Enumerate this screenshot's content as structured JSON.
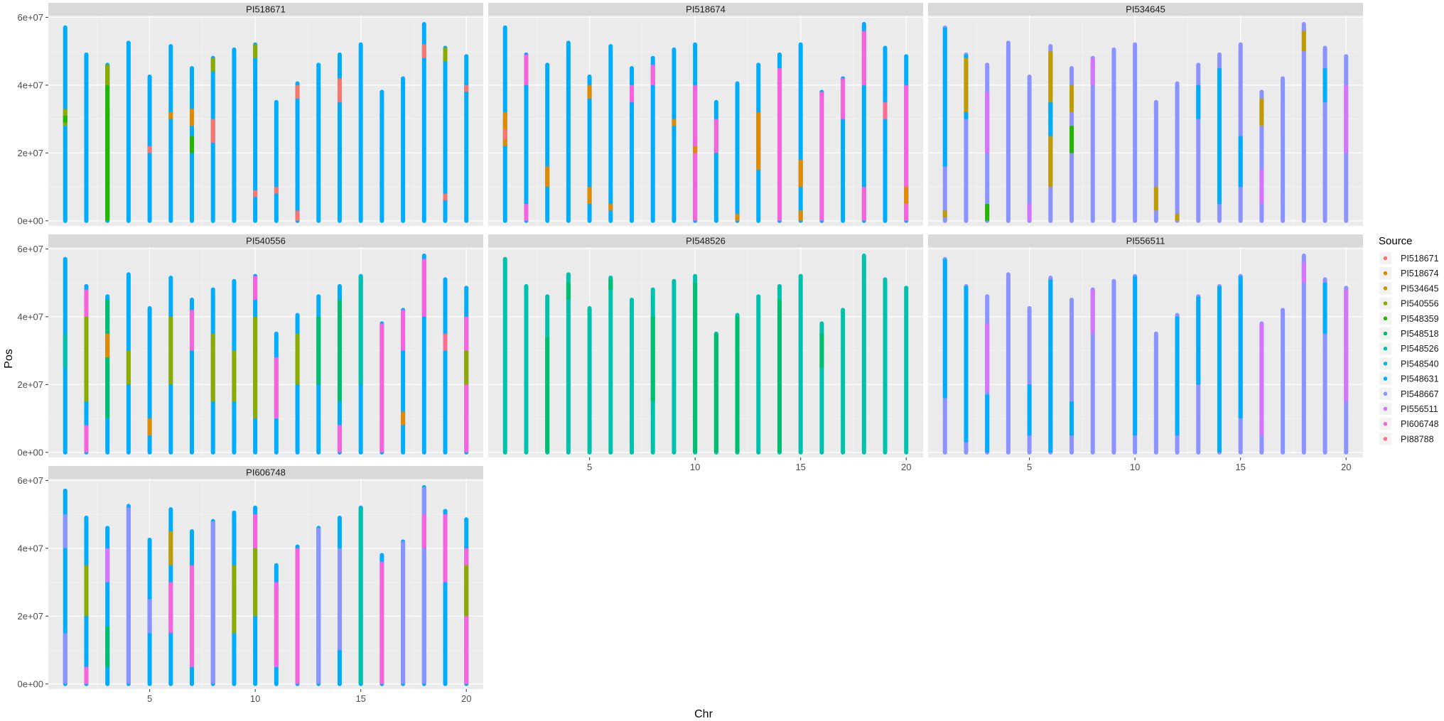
{
  "chart_data": {
    "type": "scatter",
    "facet_by": "Source panel",
    "xlabel": "Chr",
    "ylabel": "Pos",
    "xlim": [
      0.2,
      20.8
    ],
    "ylim": [
      -1500000,
      60500000
    ],
    "x_ticks": [
      5,
      10,
      15,
      20
    ],
    "x_tick_labels": [
      "5",
      "10",
      "15",
      "20"
    ],
    "y_ticks": [
      0,
      20000000,
      40000000,
      60000000
    ],
    "y_tick_labels": [
      "0e+00",
      "2e+07",
      "4e+07",
      "6e+07"
    ],
    "grid": true,
    "legend": {
      "title": "Source",
      "position": "right",
      "entries": [
        {
          "label": "PI518671",
          "color": "#F8766D"
        },
        {
          "label": "PI518674",
          "color": "#E18A00"
        },
        {
          "label": "PI534645",
          "color": "#BE9C00"
        },
        {
          "label": "PI540556",
          "color": "#8CAB00"
        },
        {
          "label": "PI548359",
          "color": "#24B700"
        },
        {
          "label": "PI548518",
          "color": "#00BE70"
        },
        {
          "label": "PI548526",
          "color": "#00C1AB"
        },
        {
          "label": "PI548540",
          "color": "#00BBDA"
        },
        {
          "label": "PI548631",
          "color": "#00ACFC"
        },
        {
          "label": "PI548667",
          "color": "#8B93FF"
        },
        {
          "label": "PI556511",
          "color": "#D575FE"
        },
        {
          "label": "PI606748",
          "color": "#F962DD"
        },
        {
          "label": "PI88788",
          "color": "#FF6C91"
        }
      ]
    },
    "chromosome_lengths": [
      57,
      49,
      46,
      52.5,
      42.5,
      51.5,
      45,
      48,
      50.5,
      52,
      35,
      40.5,
      46,
      49,
      52,
      38,
      42,
      58,
      51,
      48.5
    ],
    "panels": [
      {
        "title": "PI518671",
        "base_color": "#00ACFC",
        "segments": [
          [
            1,
            28,
            33,
            "#8CAB00"
          ],
          [
            1,
            29,
            31,
            "#24B700"
          ],
          [
            3,
            0,
            46,
            "#24B700"
          ],
          [
            3,
            1,
            33,
            "#24B700"
          ],
          [
            3,
            40,
            46,
            "#8CAB00"
          ],
          [
            5,
            20,
            22,
            "#F8766D"
          ],
          [
            6,
            30,
            32,
            "#E18A00"
          ],
          [
            7,
            28,
            33,
            "#E18A00"
          ],
          [
            7,
            20,
            25,
            "#24B700"
          ],
          [
            8,
            23,
            30,
            "#F8766D"
          ],
          [
            8,
            44,
            48,
            "#8CAB00"
          ],
          [
            10,
            48,
            52,
            "#8CAB00"
          ],
          [
            10,
            7,
            9,
            "#F8766D"
          ],
          [
            11,
            8,
            10,
            "#F8766D"
          ],
          [
            12,
            0,
            3,
            "#F8766D"
          ],
          [
            12,
            36,
            40,
            "#F8766D"
          ],
          [
            14,
            35,
            42,
            "#F8766D"
          ],
          [
            18,
            48,
            52,
            "#F8766D"
          ],
          [
            19,
            47,
            51,
            "#8CAB00"
          ],
          [
            19,
            6,
            8,
            "#F8766D"
          ],
          [
            20,
            38,
            40,
            "#F8766D"
          ]
        ]
      },
      {
        "title": "PI518674",
        "base_color": "#00ACFC",
        "segments": [
          [
            1,
            22,
            32,
            "#E18A00"
          ],
          [
            1,
            24,
            27,
            "#F8766D"
          ],
          [
            2,
            40,
            49,
            "#F962DD"
          ],
          [
            2,
            0,
            5,
            "#F962DD"
          ],
          [
            3,
            10,
            16,
            "#E18A00"
          ],
          [
            5,
            5,
            10,
            "#E18A00"
          ],
          [
            5,
            36,
            40,
            "#E18A00"
          ],
          [
            6,
            3,
            5,
            "#E18A00"
          ],
          [
            7,
            35,
            40,
            "#F962DD"
          ],
          [
            8,
            40,
            46,
            "#F962DD"
          ],
          [
            9,
            28,
            30,
            "#E18A00"
          ],
          [
            10,
            0,
            40,
            "#F962DD"
          ],
          [
            10,
            20,
            22,
            "#E18A00"
          ],
          [
            11,
            20,
            30,
            "#F962DD"
          ],
          [
            12,
            0,
            2,
            "#E18A00"
          ],
          [
            13,
            15,
            32,
            "#E18A00"
          ],
          [
            14,
            0,
            45,
            "#F962DD"
          ],
          [
            15,
            10,
            18,
            "#E18A00"
          ],
          [
            15,
            0,
            3,
            "#E18A00"
          ],
          [
            16,
            0,
            38,
            "#F962DD"
          ],
          [
            17,
            30,
            42,
            "#F962DD"
          ],
          [
            18,
            40,
            56,
            "#F962DD"
          ],
          [
            18,
            0,
            10,
            "#F962DD"
          ],
          [
            19,
            30,
            35,
            "#FF6C91"
          ],
          [
            20,
            0,
            40,
            "#F962DD"
          ],
          [
            20,
            5,
            10,
            "#E18A00"
          ]
        ]
      },
      {
        "title": "PI534645",
        "base_color": "#8B93FF",
        "segments": [
          [
            1,
            16,
            57,
            "#00ACFC"
          ],
          [
            1,
            1,
            3,
            "#BE9C00"
          ],
          [
            2,
            30,
            49,
            "#00ACFC"
          ],
          [
            2,
            32,
            48,
            "#BE9C00"
          ],
          [
            3,
            0,
            5,
            "#24B700"
          ],
          [
            3,
            20,
            38,
            "#D575FE"
          ],
          [
            5,
            0,
            5,
            "#D575FE"
          ],
          [
            6,
            10,
            50,
            "#BE9C00"
          ],
          [
            6,
            25,
            35,
            "#00ACFC"
          ],
          [
            7,
            20,
            28,
            "#24B700"
          ],
          [
            7,
            32,
            40,
            "#BE9C00"
          ],
          [
            8,
            40,
            48,
            "#D575FE"
          ],
          [
            11,
            3,
            10,
            "#BE9C00"
          ],
          [
            12,
            0,
            2,
            "#BE9C00"
          ],
          [
            13,
            30,
            40,
            "#00ACFC"
          ],
          [
            14,
            5,
            45,
            "#00ACFC"
          ],
          [
            15,
            10,
            25,
            "#00ACFC"
          ],
          [
            16,
            28,
            36,
            "#BE9C00"
          ],
          [
            16,
            5,
            15,
            "#D575FE"
          ],
          [
            18,
            50,
            56,
            "#BE9C00"
          ],
          [
            19,
            35,
            45,
            "#00ACFC"
          ],
          [
            20,
            20,
            40,
            "#D575FE"
          ]
        ]
      },
      {
        "title": "PI540556",
        "base_color": "#00ACFC",
        "segments": [
          [
            1,
            25,
            35,
            "#00C1AB"
          ],
          [
            2,
            15,
            48,
            "#8CAB00"
          ],
          [
            2,
            0,
            8,
            "#F962DD"
          ],
          [
            2,
            40,
            48,
            "#F962DD"
          ],
          [
            3,
            10,
            45,
            "#00BE70"
          ],
          [
            3,
            28,
            35,
            "#E18A00"
          ],
          [
            4,
            20,
            30,
            "#8CAB00"
          ],
          [
            5,
            5,
            10,
            "#E18A00"
          ],
          [
            6,
            20,
            40,
            "#8CAB00"
          ],
          [
            7,
            30,
            42,
            "#F962DD"
          ],
          [
            8,
            15,
            35,
            "#8CAB00"
          ],
          [
            9,
            15,
            30,
            "#8CAB00"
          ],
          [
            10,
            10,
            40,
            "#8CAB00"
          ],
          [
            10,
            45,
            52,
            "#F962DD"
          ],
          [
            11,
            10,
            28,
            "#F962DD"
          ],
          [
            12,
            20,
            35,
            "#8CAB00"
          ],
          [
            13,
            20,
            40,
            "#00BE70"
          ],
          [
            14,
            15,
            45,
            "#00BE70"
          ],
          [
            14,
            0,
            8,
            "#F962DD"
          ],
          [
            15,
            20,
            52,
            "#00C1AB"
          ],
          [
            16,
            0,
            38,
            "#F962DD"
          ],
          [
            17,
            8,
            12,
            "#E18A00"
          ],
          [
            17,
            30,
            42,
            "#F962DD"
          ],
          [
            18,
            40,
            57,
            "#F962DD"
          ],
          [
            19,
            30,
            35,
            "#FF6C91"
          ],
          [
            20,
            0,
            40,
            "#F962DD"
          ],
          [
            20,
            20,
            30,
            "#8CAB00"
          ]
        ]
      },
      {
        "title": "PI548526",
        "base_color": "#00C1AB",
        "segments": [
          [
            3,
            0,
            34,
            "#00BE70"
          ],
          [
            4,
            45,
            50,
            "#00BE70"
          ],
          [
            6,
            48,
            51,
            "#00BE70"
          ],
          [
            8,
            15,
            40,
            "#00BE70"
          ],
          [
            10,
            0,
            50,
            "#00BE70"
          ],
          [
            11,
            0,
            35,
            "#00BE70"
          ],
          [
            12,
            0,
            40,
            "#00BE70"
          ],
          [
            14,
            0,
            45,
            "#00BE70"
          ],
          [
            16,
            25,
            35,
            "#00BE70"
          ]
        ]
      },
      {
        "title": "PI556511",
        "base_color": "#8B93FF",
        "segments": [
          [
            1,
            16,
            57,
            "#00ACFC"
          ],
          [
            2,
            3,
            49,
            "#00ACFC"
          ],
          [
            3,
            18,
            38,
            "#D575FE"
          ],
          [
            3,
            0,
            17,
            "#00ACFC"
          ],
          [
            5,
            5,
            20,
            "#00ACFC"
          ],
          [
            6,
            0,
            51,
            "#00ACFC"
          ],
          [
            7,
            5,
            15,
            "#00ACFC"
          ],
          [
            8,
            35,
            48,
            "#D575FE"
          ],
          [
            10,
            5,
            52,
            "#00ACFC"
          ],
          [
            12,
            5,
            40,
            "#00ACFC"
          ],
          [
            13,
            20,
            46,
            "#00ACFC"
          ],
          [
            14,
            0,
            49,
            "#00ACFC"
          ],
          [
            15,
            10,
            52,
            "#00ACFC"
          ],
          [
            16,
            5,
            38,
            "#D575FE"
          ],
          [
            18,
            50,
            56,
            "#D575FE"
          ],
          [
            19,
            35,
            50,
            "#00ACFC"
          ],
          [
            20,
            15,
            48,
            "#D575FE"
          ]
        ]
      },
      {
        "title": "PI606748",
        "base_color": "#00ACFC",
        "segments": [
          [
            1,
            0,
            15,
            "#8B93FF"
          ],
          [
            1,
            40,
            50,
            "#8B93FF"
          ],
          [
            2,
            20,
            35,
            "#8CAB00"
          ],
          [
            2,
            0,
            5,
            "#F962DD"
          ],
          [
            3,
            5,
            17,
            "#00BE70"
          ],
          [
            3,
            30,
            40,
            "#D575FE"
          ],
          [
            4,
            0,
            52,
            "#8B93FF"
          ],
          [
            5,
            15,
            25,
            "#8B93FF"
          ],
          [
            6,
            35,
            45,
            "#BE9C00"
          ],
          [
            6,
            15,
            30,
            "#F962DD"
          ],
          [
            7,
            5,
            35,
            "#F962DD"
          ],
          [
            8,
            0,
            48,
            "#8B93FF"
          ],
          [
            9,
            15,
            35,
            "#8CAB00"
          ],
          [
            10,
            20,
            40,
            "#8CAB00"
          ],
          [
            10,
            40,
            50,
            "#F962DD"
          ],
          [
            11,
            5,
            30,
            "#F962DD"
          ],
          [
            12,
            0,
            40,
            "#F962DD"
          ],
          [
            13,
            0,
            46,
            "#8B93FF"
          ],
          [
            14,
            10,
            40,
            "#8B93FF"
          ],
          [
            15,
            0,
            52,
            "#00C1AB"
          ],
          [
            16,
            0,
            36,
            "#F962DD"
          ],
          [
            17,
            0,
            42,
            "#8B93FF"
          ],
          [
            18,
            0,
            58,
            "#8B93FF"
          ],
          [
            18,
            40,
            50,
            "#F962DD"
          ],
          [
            19,
            30,
            50,
            "#F962DD"
          ],
          [
            20,
            0,
            40,
            "#F962DD"
          ],
          [
            20,
            20,
            35,
            "#8CAB00"
          ]
        ]
      }
    ]
  }
}
